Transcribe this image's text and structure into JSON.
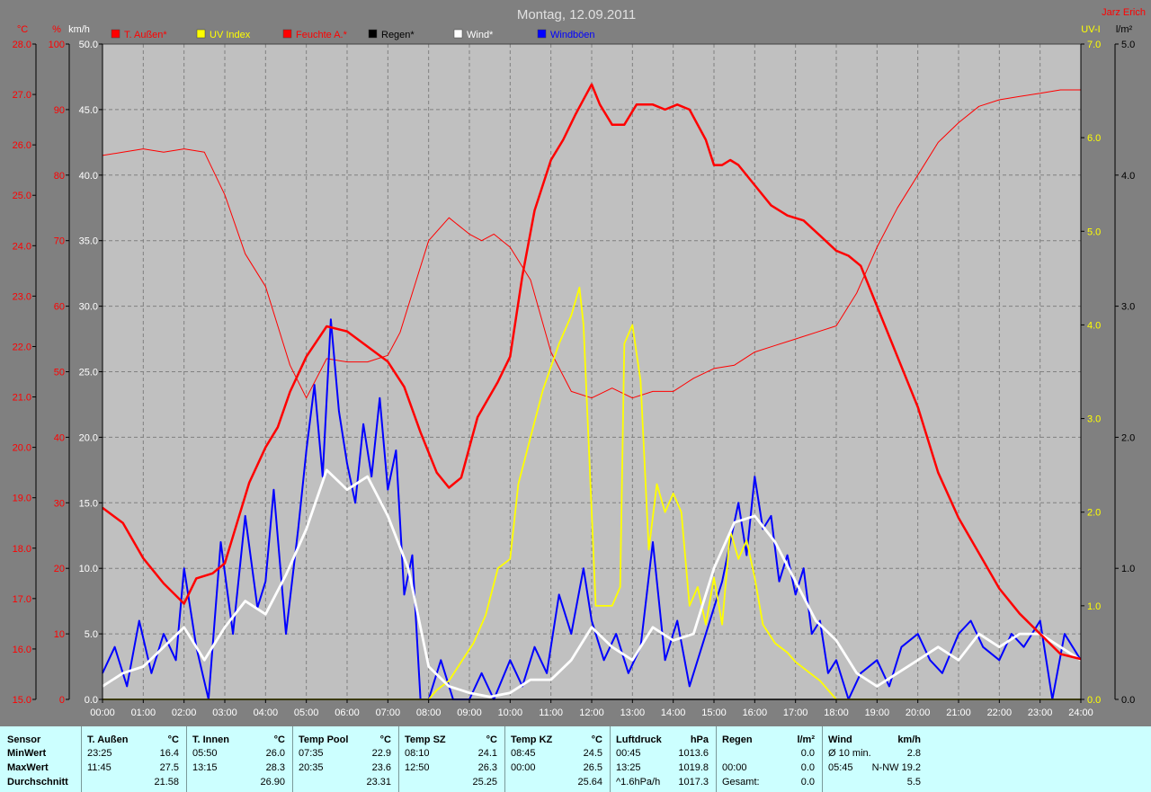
{
  "chart_data": {
    "type": "line",
    "title": "Montag, 12.09.2011",
    "station": "Jarz Erich",
    "x_ticks": [
      "00:00",
      "01:00",
      "02:00",
      "03:00",
      "04:00",
      "05:00",
      "06:00",
      "07:00",
      "08:00",
      "09:00",
      "10:00",
      "11:00",
      "12:00",
      "13:00",
      "14:00",
      "15:00",
      "16:00",
      "17:00",
      "18:00",
      "19:00",
      "20:00",
      "21:00",
      "22:00",
      "23:00",
      "24:00"
    ],
    "axes": {
      "temp": {
        "unit": "°C",
        "min": 15,
        "max": 28,
        "ticks": [
          "15.0",
          "16.0",
          "17.0",
          "18.0",
          "19.0",
          "20.0",
          "21.0",
          "22.0",
          "23.0",
          "24.0",
          "25.0",
          "26.0",
          "27.0",
          "28.0"
        ]
      },
      "humidity": {
        "unit": "%",
        "min": 0,
        "max": 100,
        "ticks": [
          "0",
          "10",
          "20",
          "30",
          "40",
          "50",
          "60",
          "70",
          "80",
          "90",
          "100"
        ]
      },
      "wind": {
        "unit": "km/h",
        "min": 0,
        "max": 50,
        "ticks": [
          "0.0",
          "5.0",
          "10.0",
          "15.0",
          "20.0",
          "25.0",
          "30.0",
          "35.0",
          "40.0",
          "45.0",
          "50.0"
        ]
      },
      "uv": {
        "unit": "UV-I",
        "min": 0,
        "max": 7,
        "ticks": [
          "0.0",
          "1.0",
          "2.0",
          "3.0",
          "4.0",
          "5.0",
          "6.0",
          "7.0"
        ]
      },
      "rain": {
        "unit": "l/m²",
        "min": 0,
        "max": 5,
        "ticks": [
          "0.0",
          "1.0",
          "2.0",
          "3.0",
          "4.0",
          "5.0"
        ]
      }
    },
    "legend": [
      {
        "label": "T. Außen*",
        "color": "#ff0000"
      },
      {
        "label": "UV Index",
        "color": "#ffff00"
      },
      {
        "label": "Feuchte A.*",
        "color": "#ff0000"
      },
      {
        "label": "Regen*",
        "color": "#000000"
      },
      {
        "label": "Wind*",
        "color": "#ffffff"
      },
      {
        "label": "Windböen",
        "color": "#0000ff"
      }
    ],
    "series": [
      {
        "name": "T. Außen*",
        "axis": "temp",
        "color": "#ff0000",
        "x": [
          0,
          0.5,
          1,
          1.5,
          2,
          2.3,
          2.7,
          3,
          3.3,
          3.6,
          4,
          4.3,
          4.6,
          5,
          5.5,
          6,
          6.5,
          7,
          7.4,
          7.8,
          8.2,
          8.5,
          8.8,
          9.2,
          9.7,
          10,
          10.3,
          10.6,
          11,
          11.3,
          11.6,
          11.8,
          12,
          12.2,
          12.5,
          12.8,
          13.1,
          13.5,
          13.8,
          14.1,
          14.4,
          14.8,
          15,
          15.2,
          15.4,
          15.6,
          16,
          16.4,
          16.8,
          17.2,
          17.6,
          18,
          18.3,
          18.6,
          19,
          19.5,
          20,
          20.5,
          21,
          21.5,
          22,
          22.5,
          23,
          23.5,
          24
        ],
        "y": [
          18.8,
          18.5,
          17.8,
          17.3,
          16.9,
          17.4,
          17.5,
          17.7,
          18.5,
          19.3,
          20.0,
          20.4,
          21.1,
          21.8,
          22.4,
          22.3,
          22.0,
          21.7,
          21.2,
          20.3,
          19.5,
          19.2,
          19.4,
          20.6,
          21.3,
          21.8,
          23.4,
          24.7,
          25.7,
          26.1,
          26.6,
          26.9,
          27.2,
          26.8,
          26.4,
          26.4,
          26.8,
          26.8,
          26.7,
          26.8,
          26.7,
          26.1,
          25.6,
          25.6,
          25.7,
          25.6,
          25.2,
          24.8,
          24.6,
          24.5,
          24.2,
          23.9,
          23.8,
          23.6,
          22.8,
          21.8,
          20.8,
          19.5,
          18.6,
          17.9,
          17.2,
          16.7,
          16.3,
          15.9,
          15.8
        ]
      },
      {
        "name": "Feuchte A.*",
        "axis": "humidity",
        "color": "#ff0000",
        "x": [
          0,
          0.5,
          1,
          1.5,
          2,
          2.5,
          3,
          3.5,
          4,
          4.3,
          4.6,
          5,
          5.5,
          6,
          6.5,
          7,
          7.3,
          7.6,
          8,
          8.5,
          9,
          9.3,
          9.6,
          10,
          10.5,
          11,
          11.5,
          12,
          12.5,
          13,
          13.5,
          14,
          14.5,
          15,
          15.5,
          16,
          16.5,
          17,
          17.5,
          18,
          18.5,
          19,
          19.5,
          20,
          20.5,
          21,
          21.5,
          22,
          22.5,
          23,
          23.5,
          24
        ],
        "y": [
          83,
          83.5,
          84,
          83.5,
          84,
          83.5,
          77,
          68,
          63,
          57,
          51,
          46,
          52,
          51.5,
          51.5,
          52.5,
          56,
          62,
          70,
          73.5,
          71,
          70,
          71,
          69,
          64,
          53,
          47,
          46,
          47.5,
          46,
          47,
          47,
          49,
          50.5,
          51,
          53,
          54,
          55,
          56,
          57,
          62,
          69,
          75,
          80,
          85,
          88,
          90.5,
          91.5,
          92,
          92.5,
          93,
          93
        ]
      },
      {
        "name": "UV Index",
        "axis": "uv",
        "color": "#ffff00",
        "x": [
          0,
          8,
          8.2,
          8.5,
          8.8,
          9.1,
          9.4,
          9.7,
          10,
          10.2,
          10.5,
          10.8,
          11.2,
          11.5,
          11.7,
          11.8,
          12,
          12.1,
          12.3,
          12.5,
          12.7,
          12.8,
          12.9,
          13,
          13.2,
          13.4,
          13.6,
          13.8,
          14,
          14.2,
          14.4,
          14.6,
          14.8,
          15,
          15.2,
          15.4,
          15.6,
          15.8,
          16,
          16.2,
          16.5,
          16.8,
          17,
          17.3,
          17.6,
          18,
          18.5,
          24
        ],
        "y": [
          0,
          0,
          0.1,
          0.2,
          0.4,
          0.6,
          0.9,
          1.4,
          1.5,
          2.3,
          2.8,
          3.3,
          3.8,
          4.1,
          4.4,
          4.0,
          2.0,
          1.0,
          1.0,
          1.0,
          1.2,
          3.8,
          3.9,
          4.0,
          3.4,
          1.6,
          2.3,
          2.0,
          2.2,
          2.0,
          1.0,
          1.2,
          0.8,
          1.3,
          0.8,
          1.8,
          1.5,
          1.7,
          1.3,
          0.8,
          0.6,
          0.5,
          0.4,
          0.3,
          0.2,
          0.0,
          0.0,
          0.0
        ]
      },
      {
        "name": "Wind*",
        "axis": "wind",
        "color": "#ffffff",
        "x": [
          0,
          0.5,
          1,
          1.5,
          2,
          2.5,
          3,
          3.5,
          4,
          4.5,
          5,
          5.5,
          6,
          6.5,
          7,
          7.5,
          8,
          8.5,
          9,
          9.5,
          10,
          10.5,
          11,
          11.5,
          12,
          12.5,
          13,
          13.5,
          14,
          14.5,
          15,
          15.5,
          16,
          16.5,
          17,
          17.5,
          18,
          18.5,
          19,
          19.5,
          20,
          20.5,
          21,
          21.5,
          22,
          22.5,
          23,
          23.5,
          24
        ],
        "y": [
          1,
          2,
          2.5,
          4,
          5.5,
          3,
          5.5,
          7.5,
          6.5,
          9.5,
          13,
          17.5,
          16,
          17,
          14,
          10,
          2.5,
          1,
          0.5,
          0.2,
          0.5,
          1.5,
          1.5,
          3,
          5.5,
          4,
          3,
          5.5,
          4.5,
          5,
          10,
          13.5,
          14,
          12,
          9,
          6,
          4.5,
          2,
          1,
          2,
          3,
          4,
          3,
          5,
          4,
          5,
          5,
          4,
          3
        ]
      },
      {
        "name": "Windböen",
        "axis": "wind",
        "color": "#0000ff",
        "x": [
          0,
          0.3,
          0.6,
          0.9,
          1.2,
          1.5,
          1.8,
          2,
          2.3,
          2.6,
          2.9,
          3.2,
          3.5,
          3.8,
          4,
          4.2,
          4.5,
          4.8,
          5,
          5.2,
          5.4,
          5.6,
          5.8,
          6,
          6.2,
          6.4,
          6.6,
          6.8,
          7,
          7.2,
          7.4,
          7.6,
          7.8,
          8,
          8.3,
          8.6,
          9,
          9.3,
          9.6,
          10,
          10.3,
          10.6,
          10.9,
          11.2,
          11.5,
          11.8,
          12,
          12.3,
          12.6,
          12.9,
          13.2,
          13.5,
          13.8,
          14.1,
          14.4,
          14.7,
          15,
          15.2,
          15.4,
          15.6,
          15.8,
          16,
          16.2,
          16.4,
          16.6,
          16.8,
          17,
          17.2,
          17.4,
          17.6,
          17.8,
          18,
          18.3,
          18.6,
          19,
          19.3,
          19.6,
          20,
          20.3,
          20.6,
          21,
          21.3,
          21.6,
          22,
          22.3,
          22.6,
          23,
          23.3,
          23.6,
          24
        ],
        "y": [
          2,
          4,
          1,
          6,
          2,
          5,
          3,
          10,
          4,
          0,
          12,
          5,
          14,
          7,
          9,
          16,
          5,
          13,
          19,
          24,
          17,
          29,
          22,
          18,
          15,
          21,
          17,
          23,
          16,
          19,
          8,
          11,
          0,
          0,
          3,
          0,
          0,
          2,
          0,
          3,
          1,
          4,
          2,
          8,
          5,
          10,
          6,
          3,
          5,
          2,
          4,
          12,
          3,
          6,
          1,
          4,
          7,
          9,
          12,
          15,
          11,
          17,
          13,
          14,
          9,
          11,
          8,
          10,
          5,
          6,
          2,
          3,
          0,
          2,
          3,
          1,
          4,
          5,
          3,
          2,
          5,
          6,
          4,
          3,
          5,
          4,
          6,
          0,
          5,
          3
        ]
      },
      {
        "name": "Regen*",
        "axis": "rain",
        "color": "#000000",
        "x": [
          0,
          24
        ],
        "y": [
          0,
          0
        ]
      }
    ]
  },
  "stats": {
    "sensor": {
      "title": "Sensor",
      "min": "MinWert",
      "max": "MaxWert",
      "avg": "Durchschnitt"
    },
    "columns": [
      {
        "title": "T. Außen",
        "unit": "°C",
        "min_time": "23:25",
        "min": "16.4",
        "max_time": "11:45",
        "max": "27.5",
        "avg_time": "",
        "avg": "21.58"
      },
      {
        "title": "T. Innen",
        "unit": "°C",
        "min_time": "05:50",
        "min": "26.0",
        "max_time": "13:15",
        "max": "28.3",
        "avg_time": "",
        "avg": "26.90"
      },
      {
        "title": "Temp Pool",
        "unit": "°C",
        "min_time": "07:35",
        "min": "22.9",
        "max_time": "20:35",
        "max": "23.6",
        "avg_time": "",
        "avg": "23.31"
      },
      {
        "title": "Temp SZ",
        "unit": "°C",
        "min_time": "08:10",
        "min": "24.1",
        "max_time": "12:50",
        "max": "26.3",
        "avg_time": "",
        "avg": "25.25"
      },
      {
        "title": "Temp KZ",
        "unit": "°C",
        "min_time": "08:45",
        "min": "24.5",
        "max_time": "00:00",
        "max": "26.5",
        "avg_time": "",
        "avg": "25.64"
      },
      {
        "title": "Luftdruck",
        "unit": "hPa",
        "min_time": "00:45",
        "min": "1013.6",
        "max_time": "13:25",
        "max": "1019.8",
        "avg_time": "^1.6hPa/h",
        "avg": "1017.3"
      },
      {
        "title": "Regen",
        "unit": "l/m²",
        "min_time": "",
        "min": "",
        "max_time": "00:00",
        "max": "0.0",
        "avg_time": "Gesamt:",
        "avg": "0.0",
        "min_val": "0.0"
      },
      {
        "title": "Wind",
        "unit": "km/h",
        "min_time": "Ø 10 min.",
        "min": "2.8",
        "max_time": "05:45",
        "max": "N-NW 19.2",
        "avg_time": "",
        "avg": "5.5"
      }
    ]
  }
}
